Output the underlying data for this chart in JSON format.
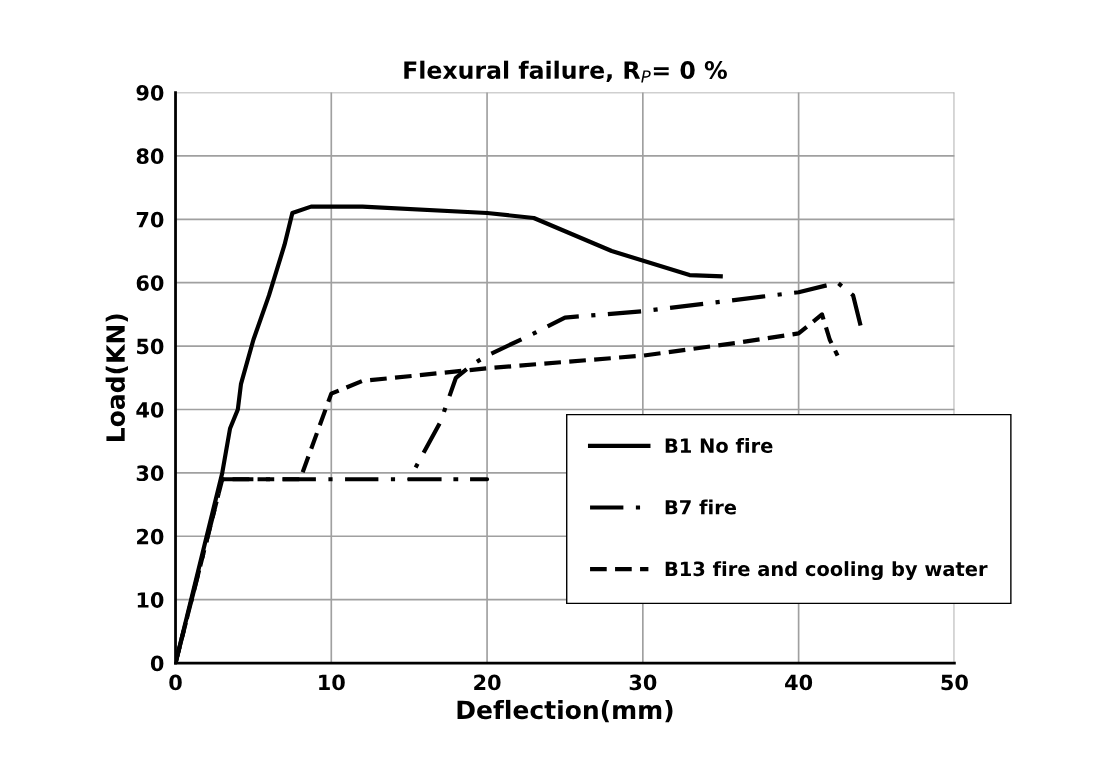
{
  "chart_data": {
    "type": "line",
    "title": "Flexural failure, R$_{P}$= 0 %",
    "xlabel": "Deflection(mm)",
    "ylabel": "Load(KN)",
    "xlim": [
      0,
      50
    ],
    "ylim": [
      0,
      90
    ],
    "xticks": [
      0,
      10,
      20,
      30,
      40,
      50
    ],
    "yticks": [
      0,
      10,
      20,
      30,
      40,
      50,
      60,
      70,
      80,
      90
    ],
    "grid": true,
    "legend": "right",
    "marker": "none",
    "series": [
      {
        "name": "B1 No fire",
        "color": "#000000",
        "line_style": "solid",
        "x": [
          0,
          1,
          2,
          3,
          3.5,
          4,
          4.2,
          5,
          6,
          7,
          7.5,
          8.7,
          12,
          20,
          23,
          28,
          33,
          35
        ],
        "values": [
          0,
          10,
          20,
          30,
          37,
          40,
          44,
          51,
          58,
          66,
          71,
          72,
          72,
          71,
          70.2,
          65,
          61.2,
          61
        ]
      },
      {
        "name": "B7 fire",
        "color": "#000000",
        "line_style": "dashdot",
        "x": [
          0,
          3,
          20,
          15,
          17,
          18,
          19,
          20,
          23,
          25,
          30,
          40,
          42.5,
          43.5,
          44
        ],
        "values": [
          0,
          29,
          29,
          29,
          38,
          45,
          47,
          48.5,
          52,
          54.5,
          55.5,
          58.5,
          60,
          58,
          53
        ]
      },
      {
        "name": "B13 fire and cooling by water",
        "color": "#000000",
        "line_style": "dashed",
        "x": [
          0,
          3,
          8,
          10,
          12,
          20,
          30,
          36,
          40,
          41.5,
          42,
          42.5
        ],
        "values": [
          0,
          29,
          29,
          42.5,
          44.5,
          46.5,
          48.5,
          50.5,
          52,
          55,
          51,
          48.5
        ]
      }
    ]
  }
}
